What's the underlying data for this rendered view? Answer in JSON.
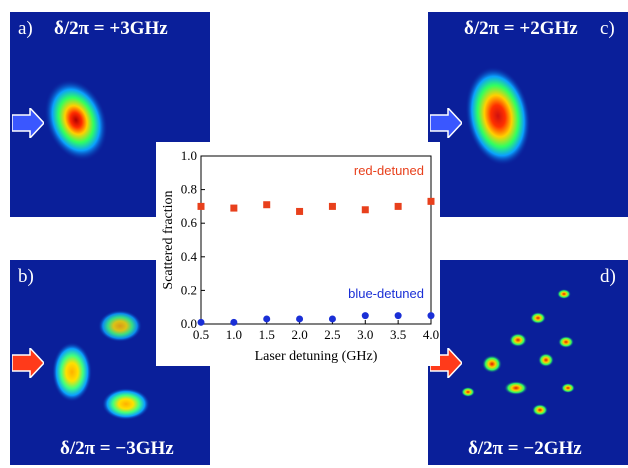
{
  "panels": [
    {
      "id": "a",
      "label": "a)",
      "title": "δ/2π = +3GHz",
      "arrow_color": "#3a57ff"
    },
    {
      "id": "b",
      "label": "b)",
      "title": "δ/2π = −3GHz",
      "arrow_color": "#ff3a1a"
    },
    {
      "id": "c",
      "label": "c)",
      "title": "δ/2π = +2GHz",
      "arrow_color": "#3a57ff"
    },
    {
      "id": "d",
      "label": "d)",
      "title": "δ/2π = −2GHz",
      "arrow_color": "#ff3a1a"
    }
  ],
  "chart_data": {
    "type": "scatter",
    "title": "",
    "xlabel": "Laser detuning (GHz)",
    "ylabel": "Scattered fraction",
    "xlim": [
      0.5,
      4.0
    ],
    "ylim": [
      0.0,
      1.0
    ],
    "xticks": [
      "0.5",
      "1.0",
      "1.5",
      "2.0",
      "2.5",
      "3.0",
      "3.5",
      "4.0"
    ],
    "yticks": [
      "0.0",
      "0.2",
      "0.4",
      "0.6",
      "0.8",
      "1.0"
    ],
    "grid": false,
    "series": [
      {
        "name": "red-detuned",
        "color": "#e8401c",
        "marker": "square",
        "x": [
          0.5,
          1.0,
          1.5,
          2.0,
          2.5,
          3.0,
          3.5,
          4.0
        ],
        "y": [
          0.7,
          0.69,
          0.71,
          0.67,
          0.7,
          0.68,
          0.7,
          0.73
        ]
      },
      {
        "name": "blue-detuned",
        "color": "#1a2fd6",
        "marker": "circle",
        "x": [
          0.5,
          1.0,
          1.5,
          2.0,
          2.5,
          3.0,
          3.5,
          4.0
        ],
        "y": [
          0.01,
          0.01,
          0.03,
          0.03,
          0.03,
          0.05,
          0.05,
          0.05
        ]
      }
    ]
  }
}
